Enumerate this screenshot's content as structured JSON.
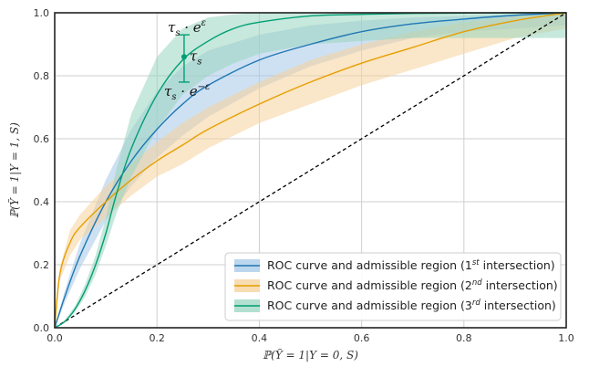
{
  "chart_data": {
    "type": "line",
    "xlabel": "ℙ(Ỹ = 1|Y = 0, S)",
    "ylabel": "ℙ(Ỹ = 1|Y = 1, S)",
    "xlim": [
      0,
      1
    ],
    "ylim": [
      0,
      1
    ],
    "x_ticks": [
      "0.0",
      "0.2",
      "0.4",
      "0.6",
      "0.8",
      "1.0"
    ],
    "y_ticks": [
      "0.0",
      "0.2",
      "0.4",
      "0.6",
      "0.8",
      "1.0"
    ],
    "grid": true,
    "legend_position": "bottom-right",
    "series": [
      {
        "name": "ROC curve and admissible region (1st intersection)",
        "name_main": "ROC curve and admissible region (1",
        "name_sup": "st",
        "name_tail": " intersection)",
        "color": "#1f77b4",
        "band_color": "#a6c8e8",
        "x": [
          0,
          0.02,
          0.05,
          0.1,
          0.15,
          0.2,
          0.25,
          0.3,
          0.4,
          0.5,
          0.6,
          0.7,
          0.8,
          0.9,
          1.0
        ],
        "y": [
          0,
          0.1,
          0.23,
          0.4,
          0.53,
          0.63,
          0.71,
          0.77,
          0.85,
          0.9,
          0.94,
          0.965,
          0.98,
          0.992,
          1.0
        ],
        "upper": [
          0,
          0.12,
          0.27,
          0.47,
          0.63,
          0.75,
          0.83,
          0.88,
          0.93,
          0.96,
          0.975,
          0.985,
          0.99,
          0.995,
          1.0
        ],
        "lower": [
          0,
          0.08,
          0.19,
          0.34,
          0.45,
          0.54,
          0.61,
          0.67,
          0.76,
          0.83,
          0.88,
          0.92,
          0.94,
          0.95,
          0.96
        ]
      },
      {
        "name": "ROC curve and admissible region (2nd intersection)",
        "name_main": "ROC curve and admissible region (2",
        "name_sup": "nd",
        "name_tail": " intersection)",
        "color": "#e69f00",
        "band_color": "#f5d29a",
        "x": [
          0,
          0.01,
          0.03,
          0.05,
          0.1,
          0.15,
          0.2,
          0.25,
          0.3,
          0.4,
          0.5,
          0.6,
          0.7,
          0.8,
          0.9,
          1.0
        ],
        "y": [
          0,
          0.17,
          0.27,
          0.32,
          0.4,
          0.47,
          0.53,
          0.58,
          0.63,
          0.71,
          0.78,
          0.84,
          0.89,
          0.94,
          0.975,
          1.0
        ],
        "upper": [
          0,
          0.19,
          0.31,
          0.36,
          0.45,
          0.52,
          0.59,
          0.65,
          0.7,
          0.78,
          0.85,
          0.9,
          0.94,
          0.97,
          0.99,
          1.0
        ],
        "lower": [
          0,
          0.15,
          0.23,
          0.28,
          0.35,
          0.42,
          0.48,
          0.52,
          0.57,
          0.65,
          0.71,
          0.77,
          0.82,
          0.87,
          0.92,
          0.95
        ]
      },
      {
        "name": "ROC curve and admissible region (3rd intersection)",
        "name_main": "ROC curve and admissible region (3",
        "name_sup": "rd",
        "name_tail": " intersection)",
        "color": "#009e73",
        "band_color": "#99d5c0",
        "x": [
          0,
          0.02,
          0.04,
          0.06,
          0.08,
          0.1,
          0.12,
          0.15,
          0.2,
          0.25,
          0.3,
          0.35,
          0.4,
          0.5,
          0.6,
          0.7,
          0.8,
          0.9,
          1.0
        ],
        "y": [
          0,
          0.02,
          0.06,
          0.12,
          0.2,
          0.3,
          0.42,
          0.57,
          0.74,
          0.85,
          0.91,
          0.95,
          0.97,
          0.99,
          0.995,
          0.998,
          0.999,
          1.0,
          1.0
        ],
        "upper": [
          0,
          0.025,
          0.07,
          0.14,
          0.23,
          0.35,
          0.5,
          0.68,
          0.86,
          0.95,
          0.985,
          0.995,
          1.0,
          1.0,
          1.0,
          1.0,
          1.0,
          1.0,
          1.0
        ],
        "lower": [
          0,
          0.018,
          0.05,
          0.1,
          0.17,
          0.26,
          0.36,
          0.48,
          0.63,
          0.74,
          0.8,
          0.84,
          0.87,
          0.9,
          0.91,
          0.92,
          0.92,
          0.92,
          0.92
        ]
      }
    ],
    "diagonal": {
      "x": [
        0,
        1
      ],
      "y": [
        0,
        1
      ],
      "style": "dashed",
      "color": "#000000"
    },
    "annotation": {
      "point_x": 0.253,
      "point_y": 0.86,
      "upper_y": 0.93,
      "lower_y": 0.78,
      "color": "#009e73",
      "point_label": "τ",
      "point_label_sub": "s",
      "upper_label": "τ",
      "upper_label_sub": "s",
      "upper_label_op": " · e",
      "upper_label_sup": "ε",
      "lower_label": "τ",
      "lower_label_sub": "s",
      "lower_label_op": " · e",
      "lower_label_sup": "−ε"
    }
  }
}
